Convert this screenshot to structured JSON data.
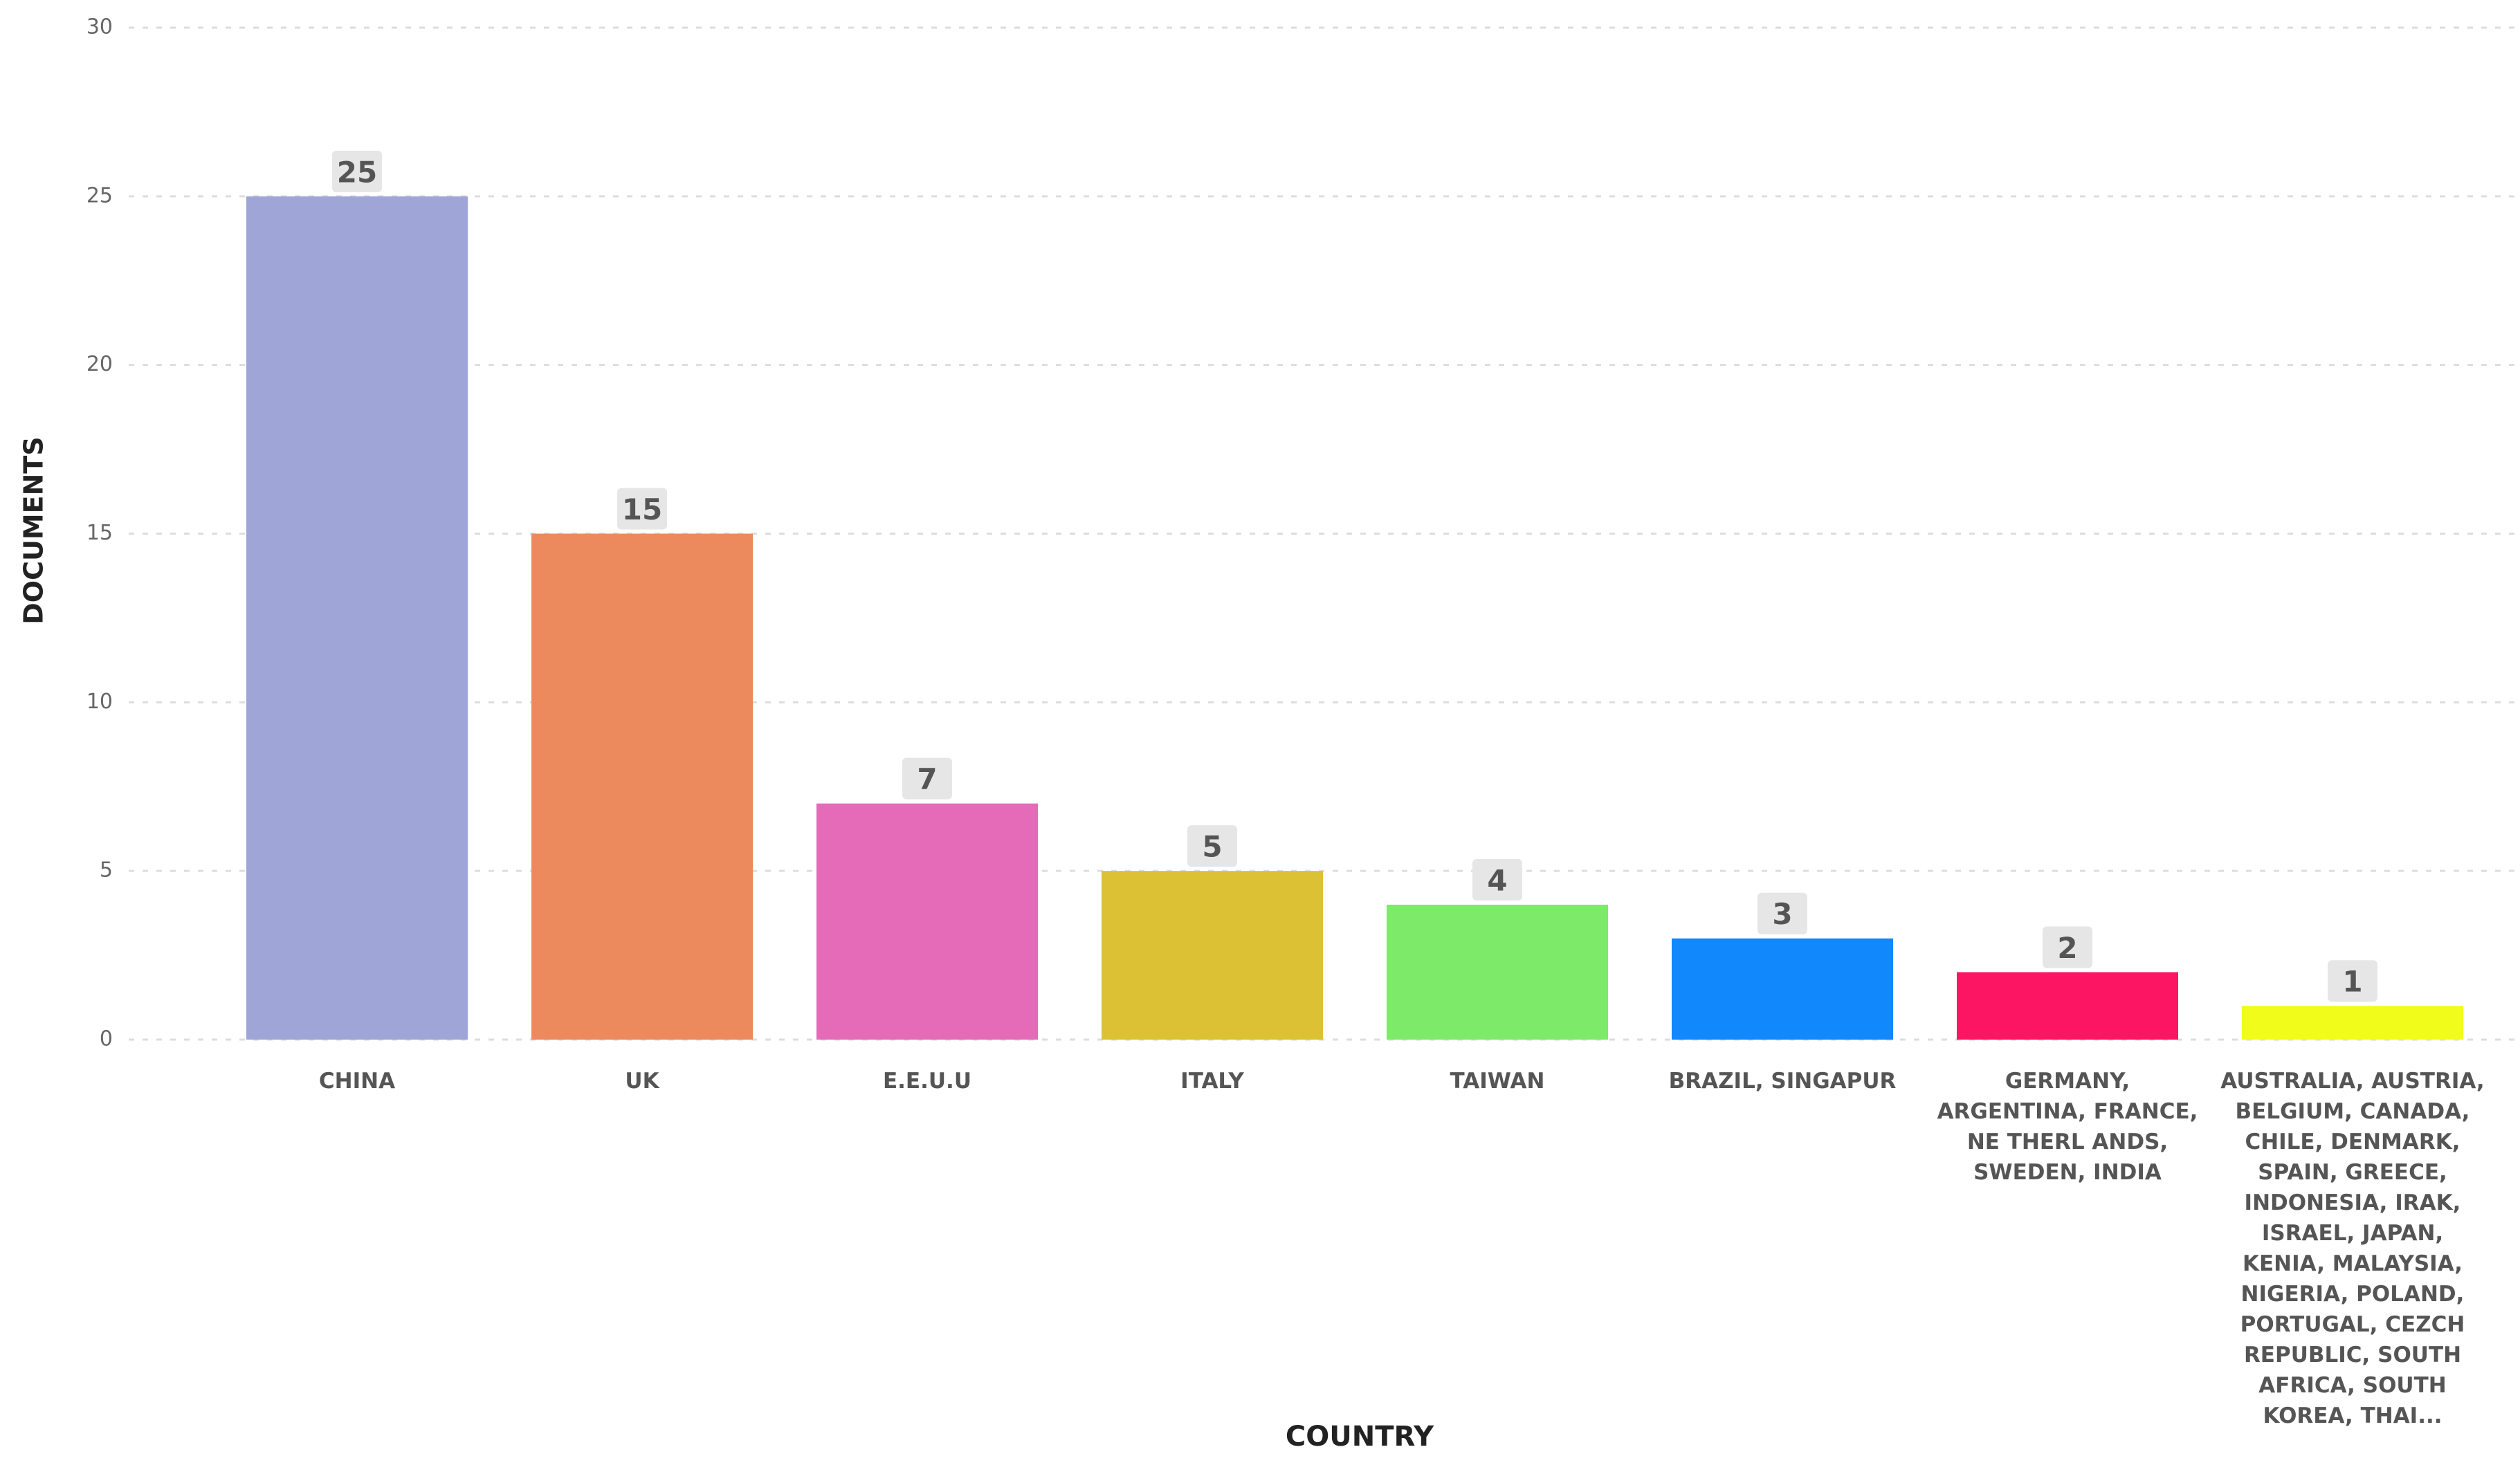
{
  "chart_data": {
    "type": "bar",
    "categories": [
      "CHINA",
      "UK",
      "E.E.U.U",
      "ITALY",
      "TAIWAN",
      "BRAZIL, SINGAPUR",
      "GERMANY, ARGENTINA, FRANCE, NE THERL ANDS, SWEDEN, INDIA",
      "AUSTRALIA, AUSTRIA, BELGIUM, CANADA, CHILE, DENMARK, SPAIN, GREECE, INDONESIA, IRAK, ISRAEL, JAPAN, KENIA, MALAYSIA, NIGERIA, POLAND, PORTUGAL, CEZCH REPUBLIC, SOUTH AFRICA, SOUTH KOREA, THAI..."
    ],
    "values": [
      25,
      15,
      7,
      5,
      4,
      3,
      2,
      1
    ],
    "colors": [
      "#a0a5d8",
      "#ec8a5d",
      "#e56bb9",
      "#dcc135",
      "#7eea6a",
      "#1188fb",
      "#fb1562",
      "#f2fc1b"
    ],
    "x_label": "COUNTRY",
    "y_label": "DOCUMENTS",
    "ylim": [
      0,
      30
    ],
    "yticks": [
      0,
      5,
      10,
      15,
      20,
      25,
      30
    ],
    "grid": true
  }
}
